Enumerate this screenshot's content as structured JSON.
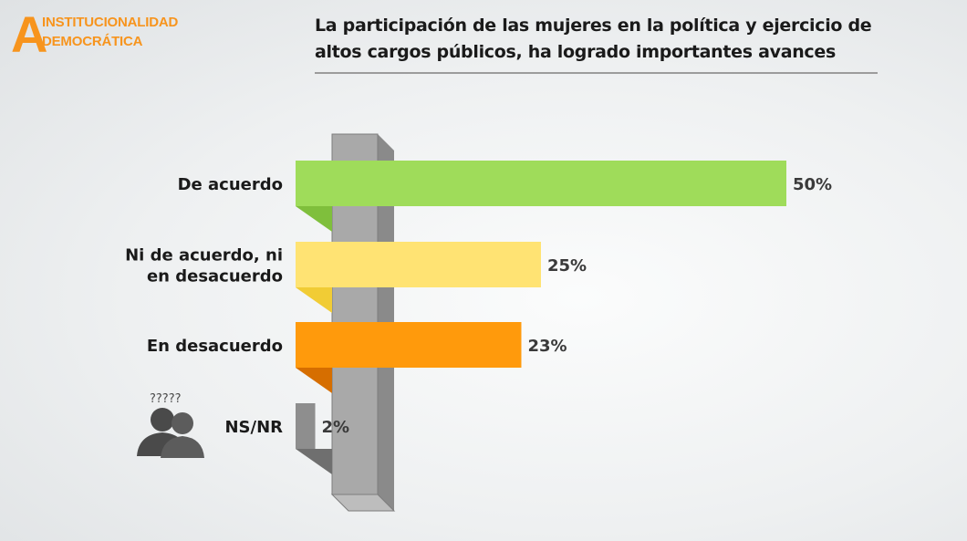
{
  "logo": {
    "letter": "A",
    "line1": "INSTITUCIONALIDAD",
    "line2": "DEMOCRÁTICA"
  },
  "title": "La participación de las mujeres en la política y ejercicio de altos cargos públicos, ha logrado importantes avances",
  "colors": {
    "accent": "#f7941d",
    "pole": "#a9a9a9",
    "pole_side": "#8a8a8a"
  },
  "chart_data": {
    "type": "bar",
    "orientation": "horizontal",
    "categories": [
      [
        "De acuerdo"
      ],
      [
        "Ni de acuerdo, ni",
        "en desacuerdo"
      ],
      [
        "En desacuerdo"
      ],
      [
        "NS/NR"
      ]
    ],
    "values": [
      50,
      25,
      23,
      2
    ],
    "value_labels": [
      "50%",
      "25%",
      "23%",
      "2%"
    ],
    "colors": [
      "#9fdc5a",
      "#ffe373",
      "#ff9a0c",
      "#8e8e8e"
    ],
    "shadow_colors": [
      "#7fbf3c",
      "#f1cc35",
      "#d66e00",
      "#6f6f6f"
    ],
    "icon": "confused-people-icon"
  }
}
